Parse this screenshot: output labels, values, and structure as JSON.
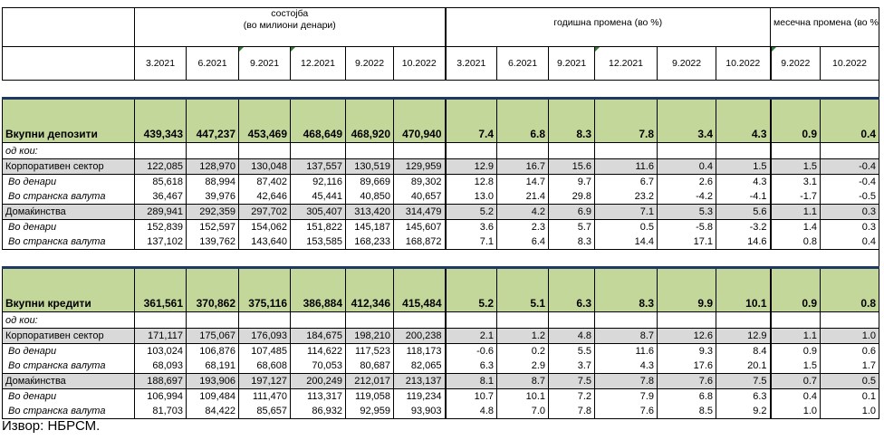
{
  "header": {
    "stock_group": "состојба",
    "stock_unit": "(во милиони денари)",
    "annual_group": "годишна промена (во %)",
    "monthly_group": "месечна промена (во %)",
    "stock_periods": [
      "3.2021",
      "6.2021",
      "9.2021",
      "12.2021",
      "9.2022",
      "10.2022"
    ],
    "annual_periods": [
      "3.2021",
      "6.2021",
      "9.2021",
      "12.2021",
      "9.2022",
      "10.2022"
    ],
    "monthly_periods": [
      "9.2022",
      "10.2022"
    ]
  },
  "deposits": {
    "total": {
      "label": "Вкупни депозити",
      "values": [
        "439,343",
        "447,237",
        "453,469",
        "468,649",
        "468,920",
        "470,940",
        "7.4",
        "6.8",
        "8.3",
        "7.8",
        "3.4",
        "4.3",
        "0.9",
        "0.4"
      ]
    },
    "of_which": "од кои:",
    "rows": [
      {
        "label": "Корпоративен сектор",
        "style": "gray",
        "values": [
          "122,085",
          "128,970",
          "130,048",
          "137,557",
          "130,519",
          "129,959",
          "12.9",
          "16.7",
          "15.6",
          "11.6",
          "0.4",
          "1.5",
          "1.5",
          "-0.4"
        ]
      },
      {
        "label": "Во денари",
        "style": "it",
        "values": [
          "85,618",
          "88,994",
          "87,402",
          "92,116",
          "89,669",
          "89,302",
          "12.8",
          "14.7",
          "9.7",
          "6.7",
          "2.6",
          "4.3",
          "3.1",
          "-0.4"
        ]
      },
      {
        "label": "Во странска валута",
        "style": "it",
        "values": [
          "36,467",
          "39,976",
          "42,646",
          "45,441",
          "40,850",
          "40,657",
          "13.0",
          "21.4",
          "29.8",
          "23.2",
          "-4.2",
          "-4.1",
          "-1.7",
          "-0.5"
        ]
      },
      {
        "label": "Домаќинства",
        "style": "gray",
        "values": [
          "289,941",
          "292,359",
          "297,702",
          "305,407",
          "313,420",
          "314,479",
          "5.2",
          "4.2",
          "6.9",
          "7.1",
          "5.3",
          "5.6",
          "1.1",
          "0.3"
        ]
      },
      {
        "label": "Во денари",
        "style": "it",
        "values": [
          "152,839",
          "152,597",
          "154,062",
          "151,822",
          "145,187",
          "145,607",
          "3.6",
          "2.3",
          "5.7",
          "0.5",
          "-5.8",
          "-3.2",
          "1.4",
          "0.3"
        ]
      },
      {
        "label": "Во странска валута",
        "style": "it",
        "values": [
          "137,102",
          "139,762",
          "143,640",
          "153,585",
          "168,233",
          "168,872",
          "7.1",
          "6.4",
          "8.3",
          "14.4",
          "17.1",
          "14.6",
          "0.8",
          "0.4"
        ]
      }
    ]
  },
  "credits": {
    "total": {
      "label": "Вкупни кредити",
      "values": [
        "361,561",
        "370,862",
        "375,116",
        "386,884",
        "412,346",
        "415,484",
        "5.2",
        "5.1",
        "6.3",
        "8.3",
        "9.9",
        "10.1",
        "0.9",
        "0.8"
      ]
    },
    "of_which": "од кои:",
    "rows": [
      {
        "label": "Корпоративен сектор",
        "style": "gray",
        "values": [
          "171,117",
          "175,067",
          "176,093",
          "184,675",
          "198,210",
          "200,238",
          "2.1",
          "1.2",
          "4.8",
          "8.7",
          "12.6",
          "12.9",
          "1.1",
          "1.0"
        ]
      },
      {
        "label": "Во денари",
        "style": "it",
        "values": [
          "103,024",
          "106,876",
          "107,485",
          "114,622",
          "117,523",
          "118,173",
          "-0.6",
          "0.2",
          "5.5",
          "11.6",
          "9.3",
          "8.4",
          "0.9",
          "0.6"
        ]
      },
      {
        "label": "Во странска валута",
        "style": "it",
        "values": [
          "68,093",
          "68,191",
          "68,608",
          "70,053",
          "80,687",
          "82,065",
          "6.3",
          "2.9",
          "3.7",
          "4.3",
          "17.6",
          "20.1",
          "1.5",
          "1.7"
        ]
      },
      {
        "label": "Домаќинства",
        "style": "gray",
        "values": [
          "188,697",
          "193,906",
          "197,127",
          "200,249",
          "212,017",
          "213,137",
          "8.1",
          "8.7",
          "7.5",
          "7.8",
          "7.6",
          "7.5",
          "0.7",
          "0.5"
        ]
      },
      {
        "label": "Во денари",
        "style": "it",
        "values": [
          "106,994",
          "109,484",
          "111,470",
          "113,317",
          "119,058",
          "119,234",
          "10.7",
          "10.1",
          "7.2",
          "7.9",
          "6.8",
          "6.3",
          "0.4",
          "0.1"
        ]
      },
      {
        "label": "Во странска валута",
        "style": "it",
        "values": [
          "81,703",
          "84,422",
          "85,657",
          "86,932",
          "92,959",
          "93,903",
          "4.8",
          "7.0",
          "7.8",
          "7.6",
          "8.5",
          "9.2",
          "1.0",
          "1.0"
        ]
      }
    ]
  },
  "source_note": "Извор: НБРСМ."
}
